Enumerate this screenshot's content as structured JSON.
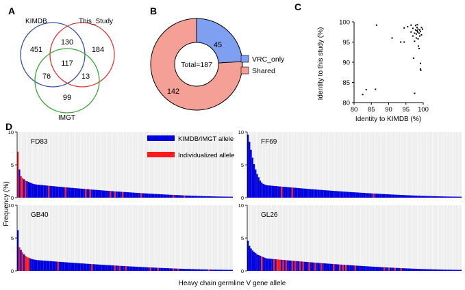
{
  "panel_letters": {
    "a": "A",
    "b": "B",
    "c": "C",
    "d": "D"
  },
  "chart_data": [
    {
      "type": "venn",
      "panel": "A",
      "sets": [
        "KIMDB",
        "This_Study",
        "IMGT"
      ],
      "colors": {
        "KIMDB": "#3a4fb0",
        "This_Study": "#d83a3a",
        "IMGT": "#3aa63a"
      },
      "regions": {
        "kimdb_only": 451,
        "study_only": 184,
        "imgt_only": 99,
        "kimdb_study": 130,
        "kimdb_imgt": 76,
        "study_imgt": 13,
        "all_three": 117
      }
    },
    {
      "type": "pie",
      "subtype": "donut",
      "panel": "B",
      "center_label": "Total=187",
      "slices": [
        {
          "label": "VRC_only",
          "value": 45,
          "color": "#7f9ff0"
        },
        {
          "label": "Shared",
          "value": 142,
          "color": "#f4a096"
        }
      ]
    },
    {
      "type": "scatter",
      "panel": "C",
      "xlabel": "Identity to KIMDB (%)",
      "ylabel": "Identity to this study (%)",
      "xlim": [
        80,
        100
      ],
      "ylim": [
        80,
        100
      ],
      "xticks": [
        80,
        85,
        90,
        95,
        100
      ],
      "yticks": [
        80,
        85,
        90,
        95,
        100
      ],
      "points": [
        [
          82.5,
          82
        ],
        [
          83.5,
          83.2
        ],
        [
          86.2,
          83.3
        ],
        [
          86.5,
          99.2
        ],
        [
          91,
          96
        ],
        [
          93.5,
          95
        ],
        [
          94.5,
          95
        ],
        [
          94.5,
          98.5
        ],
        [
          95.5,
          98.8
        ],
        [
          96.5,
          99.2
        ],
        [
          96.5,
          97.5
        ],
        [
          97,
          98.4
        ],
        [
          97,
          96.5
        ],
        [
          97.2,
          91
        ],
        [
          97.5,
          95.2
        ],
        [
          97.5,
          97.2
        ],
        [
          97.5,
          82.3
        ],
        [
          97.8,
          98
        ],
        [
          97.8,
          99.1
        ],
        [
          98,
          97
        ],
        [
          98,
          96
        ],
        [
          98.2,
          97.8
        ],
        [
          98.2,
          98.6
        ],
        [
          98.3,
          99.3
        ],
        [
          98.4,
          97.5
        ],
        [
          98.5,
          98.2
        ],
        [
          98.5,
          95.8
        ],
        [
          98.6,
          94
        ],
        [
          98.8,
          93.4
        ],
        [
          98.8,
          97.2
        ],
        [
          99,
          98
        ],
        [
          99,
          96.5
        ],
        [
          99.2,
          97.6
        ],
        [
          99.2,
          89.7
        ],
        [
          99.2,
          88.3
        ],
        [
          99.3,
          88
        ],
        [
          99.5,
          98.6
        ],
        [
          99.5,
          96.8
        ],
        [
          99.8,
          98.2
        ]
      ]
    },
    {
      "type": "bar",
      "panel": "D",
      "xlabel": "Heavy chain germline V gene allele",
      "ylabel": "Frequency (%)",
      "legend": [
        {
          "label": "KIMDB/IMGT allele",
          "color": "#0000dd"
        },
        {
          "label": "Individualized allele",
          "color": "#ff1a1a"
        }
      ],
      "subplots": [
        {
          "name": "FD83",
          "ylim": [
            0,
            10
          ],
          "yticks": [
            0,
            5,
            10
          ],
          "n_bars": 140,
          "head": [
            7,
            4.3,
            3.3,
            3,
            2.8,
            2.6,
            2.5,
            2.4,
            2.3,
            2.2,
            2.1,
            2.05
          ],
          "tail_start": 2.0,
          "tail_end": 0.15,
          "red_positions": [
            0,
            2,
            3,
            5,
            20,
            31,
            44,
            47,
            60,
            63,
            68,
            80,
            101,
            108
          ]
        },
        {
          "name": "FF69",
          "ylim": [
            0,
            10
          ],
          "yticks": [
            0,
            5,
            10
          ],
          "n_bars": 140,
          "head": [
            9.6,
            8.5,
            7.3,
            6.1,
            5.1,
            4.3,
            3.6,
            3.1,
            2.6,
            2.3,
            2.1,
            2.0
          ],
          "tail_start": 1.9,
          "tail_end": 0.15,
          "red_positions": [
            22,
            29,
            82
          ]
        },
        {
          "name": "GB40",
          "ylim": [
            0,
            10
          ],
          "yticks": [
            0,
            5,
            10
          ],
          "n_bars": 140,
          "head": [
            6.2,
            3.6,
            3.2,
            2.8,
            2.5,
            2.3,
            2.1,
            2.0,
            1.9,
            1.8,
            1.75,
            1.7
          ],
          "tail_start": 1.65,
          "tail_end": 0.15,
          "red_positions": [
            1,
            3,
            5,
            6,
            7,
            26,
            48,
            63,
            66,
            70,
            86,
            91,
            101,
            104,
            124
          ]
        },
        {
          "name": "GL26",
          "ylim": [
            0,
            10
          ],
          "yticks": [
            0,
            5,
            10
          ],
          "n_bars": 140,
          "head": [
            4.6,
            3.8,
            3.4,
            3.1,
            2.9,
            2.7,
            2.5,
            2.4,
            2.3,
            2.2,
            2.1,
            2.0
          ],
          "tail_start": 1.9,
          "tail_end": 0.15,
          "red_positions": [
            9,
            17,
            19,
            20,
            21,
            23,
            25,
            29,
            31,
            34,
            36,
            40,
            44,
            48,
            56,
            60,
            62,
            64,
            70,
            89,
            92,
            96,
            100
          ]
        }
      ]
    }
  ]
}
